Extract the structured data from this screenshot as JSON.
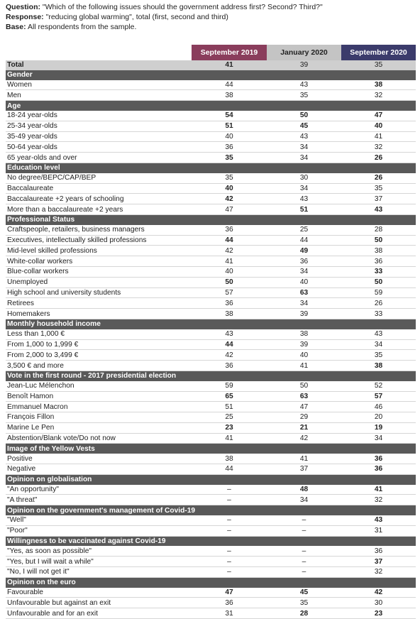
{
  "header": {
    "question_label": "Question:",
    "question": "\"Which of the following issues should the government address first? Second? Third?\"",
    "response_label": "Response:",
    "response": "\"reducing global warming\", total (first, second and third)",
    "base_label": "Base:",
    "base": "All respondents from the sample."
  },
  "table": {
    "columns": [
      {
        "label": "September 2019",
        "color": "#8a3d5c",
        "text_color": "#ffffff"
      },
      {
        "label": "January 2020",
        "color": "#c4c4c4",
        "text_color": "#222222"
      },
      {
        "label": "September 2020",
        "color": "#3b3b6b",
        "text_color": "#ffffff"
      }
    ],
    "total": {
      "label": "Total",
      "values": [
        41,
        39,
        35
      ],
      "bold": [
        0
      ]
    },
    "sections": [
      {
        "title": "Gender",
        "rows": [
          {
            "label": "Women",
            "values": [
              44,
              43,
              38
            ],
            "bold": [
              2
            ]
          },
          {
            "label": "Men",
            "values": [
              38,
              35,
              32
            ],
            "bold": []
          }
        ]
      },
      {
        "title": "Age",
        "rows": [
          {
            "label": "18-24 year-olds",
            "values": [
              54,
              50,
              47
            ],
            "bold": [
              0,
              1,
              2
            ]
          },
          {
            "label": "25-34 year-olds",
            "values": [
              51,
              45,
              40
            ],
            "bold": [
              0,
              1,
              2
            ]
          },
          {
            "label": "35-49 year-olds",
            "values": [
              40,
              43,
              41
            ],
            "bold": []
          },
          {
            "label": "50-64 year-olds",
            "values": [
              36,
              34,
              32
            ],
            "bold": []
          },
          {
            "label": "65 year-olds and over",
            "values": [
              35,
              34,
              26
            ],
            "bold": [
              0,
              2
            ]
          }
        ]
      },
      {
        "title": "Education level",
        "rows": [
          {
            "label": "No degree/BEPC/CAP/BEP",
            "values": [
              35,
              30,
              26
            ],
            "bold": [
              2
            ]
          },
          {
            "label": "Baccalaureate",
            "values": [
              40,
              34,
              35
            ],
            "bold": [
              0
            ]
          },
          {
            "label": "Baccalaureate +2 years of schooling",
            "values": [
              42,
              43,
              37
            ],
            "bold": [
              0
            ]
          },
          {
            "label": "More than a baccalaureate +2 years",
            "values": [
              47,
              51,
              43
            ],
            "bold": [
              1,
              2
            ]
          }
        ]
      },
      {
        "title": "Professional Status",
        "rows": [
          {
            "label": "Craftspeople, retailers, business managers",
            "values": [
              36,
              25,
              28
            ],
            "bold": []
          },
          {
            "label": "Executives, intellectually skilled professions",
            "values": [
              44,
              44,
              50
            ],
            "bold": [
              0,
              2
            ]
          },
          {
            "label": "Mid-level skilled professions",
            "values": [
              42,
              49,
              38
            ],
            "bold": [
              1
            ]
          },
          {
            "label": "White-collar workers",
            "values": [
              41,
              36,
              36
            ],
            "bold": []
          },
          {
            "label": "Blue-collar workers",
            "values": [
              40,
              34,
              33
            ],
            "bold": [
              2
            ]
          },
          {
            "label": "Unemployed",
            "values": [
              50,
              40,
              50
            ],
            "bold": [
              0,
              2
            ]
          },
          {
            "label": "High school and university students",
            "values": [
              57,
              63,
              59
            ],
            "bold": [
              1
            ]
          },
          {
            "label": "Retirees",
            "values": [
              36,
              34,
              26
            ],
            "bold": []
          },
          {
            "label": "Homemakers",
            "values": [
              38,
              39,
              33
            ],
            "bold": []
          }
        ]
      },
      {
        "title": "Monthly household income",
        "rows": [
          {
            "label": "Less than 1,000 €",
            "values": [
              43,
              38,
              43
            ],
            "bold": []
          },
          {
            "label": "From 1,000 to 1,999 €",
            "values": [
              44,
              39,
              34
            ],
            "bold": [
              0
            ]
          },
          {
            "label": "From 2,000 to 3,499 €",
            "values": [
              42,
              40,
              35
            ],
            "bold": []
          },
          {
            "label": "3,500 € and more",
            "values": [
              36,
              41,
              38
            ],
            "bold": [
              2
            ]
          }
        ]
      },
      {
        "title": "Vote in the first round - 2017 presidential election",
        "rows": [
          {
            "label": "Jean-Luc Mélenchon",
            "values": [
              59,
              50,
              52
            ],
            "bold": []
          },
          {
            "label": "Benoît Hamon",
            "values": [
              65,
              63,
              57
            ],
            "bold": [
              0,
              1,
              2
            ]
          },
          {
            "label": "Emmanuel Macron",
            "values": [
              51,
              47,
              46
            ],
            "bold": []
          },
          {
            "label": "François Fillon",
            "values": [
              25,
              29,
              20
            ],
            "bold": []
          },
          {
            "label": "Marine Le Pen",
            "values": [
              23,
              21,
              19
            ],
            "bold": [
              0,
              1,
              2
            ]
          },
          {
            "label": "Abstention/Blank vote/Do not now",
            "values": [
              41,
              42,
              34
            ],
            "bold": []
          }
        ]
      },
      {
        "title": "Image of the Yellow Vests",
        "rows": [
          {
            "label": "Positive",
            "values": [
              38,
              41,
              36
            ],
            "bold": [
              2
            ]
          },
          {
            "label": "Negative",
            "values": [
              44,
              37,
              36
            ],
            "bold": [
              2
            ]
          }
        ]
      },
      {
        "title": "Opinion on globalisation",
        "rows": [
          {
            "label": "\"An opportunity\"",
            "values": [
              "–",
              48,
              41
            ],
            "bold": [
              1,
              2
            ]
          },
          {
            "label": "\"A threat\"",
            "values": [
              "–",
              34,
              32
            ],
            "bold": []
          }
        ]
      },
      {
        "title": "Opinion on the government's management of Covid-19",
        "rows": [
          {
            "label": "\"Well\"",
            "values": [
              "–",
              "–",
              43
            ],
            "bold": [
              2
            ]
          },
          {
            "label": "\"Poor\"",
            "values": [
              "–",
              "–",
              31
            ],
            "bold": []
          }
        ]
      },
      {
        "title": "Willingness to be vaccinated against Covid-19",
        "rows": [
          {
            "label": "\"Yes, as soon as possible\"",
            "values": [
              "–",
              "–",
              36
            ],
            "bold": []
          },
          {
            "label": "\"Yes, but I will wait a while\"",
            "values": [
              "–",
              "–",
              37
            ],
            "bold": [
              2
            ]
          },
          {
            "label": "\"No, I will not get it\"",
            "values": [
              "–",
              "–",
              32
            ],
            "bold": []
          }
        ]
      },
      {
        "title": "Opinion on the euro",
        "rows": [
          {
            "label": "Favourable",
            "values": [
              47,
              45,
              42
            ],
            "bold": [
              0,
              1,
              2
            ]
          },
          {
            "label": "Unfavourable but against an exit",
            "values": [
              36,
              35,
              30
            ],
            "bold": []
          },
          {
            "label": "Unfavourable and for an exit",
            "values": [
              31,
              28,
              23
            ],
            "bold": [
              1,
              2
            ]
          }
        ]
      }
    ]
  }
}
